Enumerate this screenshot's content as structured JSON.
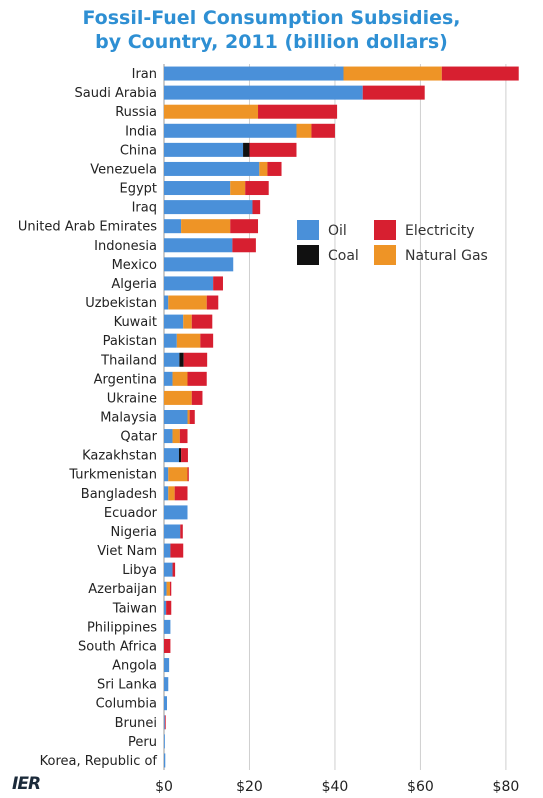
{
  "chart_data": {
    "type": "bar",
    "orientation": "horizontal",
    "stacked": true,
    "title_lines": [
      "Fossil-Fuel Consumption Subsidies,",
      "by Country, 2011 (billion dollars)"
    ],
    "xlim": [
      0,
      84
    ],
    "x_ticks": [
      0,
      20,
      40,
      60,
      80
    ],
    "x_tick_labels": [
      "$0",
      "$20",
      "$40",
      "$60",
      "$80"
    ],
    "grid": "vertical",
    "legend": "center-right",
    "categories": [
      "Iran",
      "Saudi Arabia",
      "Russia",
      "India",
      "China",
      "Venezuela",
      "Egypt",
      "Iraq",
      "United Arab Emirates",
      "Indonesia",
      "Mexico",
      "Algeria",
      "Uzbekistan",
      "Kuwait",
      "Pakistan",
      "Thailand",
      "Argentina",
      "Ukraine",
      "Malaysia",
      "Qatar",
      "Kazakhstan",
      "Turkmenistan",
      "Bangladesh",
      "Ecuador",
      "Nigeria",
      "Viet Nam",
      "Libya",
      "Azerbaijan",
      "Taiwan",
      "Philippines",
      "South Africa",
      "Angola",
      "Sri Lanka",
      "Columbia",
      "Brunei",
      "Peru",
      "Korea, Republic of"
    ],
    "series": [
      {
        "name": "Oil",
        "color": "#4A90D9",
        "values": [
          42.0,
          46.5,
          0,
          31.0,
          18.5,
          22.3,
          15.5,
          20.7,
          4.0,
          16.0,
          16.2,
          11.5,
          1.0,
          4.5,
          3.0,
          3.6,
          2.0,
          0,
          5.5,
          2.0,
          3.5,
          1.0,
          1.0,
          5.5,
          3.8,
          1.5,
          2.0,
          0.6,
          0.5,
          1.5,
          0,
          1.2,
          1.0,
          0.7,
          0.2,
          0.2,
          0.3
        ]
      },
      {
        "name": "Coal",
        "color": "#111111",
        "values": [
          0,
          0,
          0,
          0,
          1.5,
          0,
          0,
          0,
          0,
          0,
          0,
          0,
          0,
          0,
          0,
          1.0,
          0,
          0,
          0,
          0,
          0.5,
          0,
          0,
          0,
          0,
          0,
          0,
          0,
          0,
          0,
          0,
          0,
          0,
          0,
          0,
          0,
          0
        ]
      },
      {
        "name": "Natural Gas",
        "color": "#EE9426",
        "values": [
          23.0,
          0,
          22.0,
          3.5,
          0,
          1.9,
          3.5,
          0,
          11.5,
          0,
          0,
          0,
          9.0,
          2.0,
          5.5,
          0,
          3.5,
          6.5,
          0.5,
          1.7,
          0,
          4.5,
          1.5,
          0,
          0,
          0,
          0,
          0.8,
          0,
          0,
          0,
          0,
          0,
          0,
          0,
          0,
          0
        ]
      },
      {
        "name": "Electricity",
        "color": "#D71F30",
        "values": [
          18.0,
          14.5,
          18.5,
          5.5,
          11.0,
          3.3,
          5.5,
          1.8,
          6.5,
          5.5,
          0,
          2.3,
          2.7,
          4.8,
          3.0,
          5.5,
          4.5,
          2.5,
          1.2,
          1.8,
          1.6,
          0.3,
          3.0,
          0,
          0.6,
          3.0,
          0.6,
          0.3,
          1.2,
          0,
          1.5,
          0,
          0,
          0,
          0.2,
          0,
          0
        ]
      }
    ]
  },
  "logo": {
    "text": "IER"
  }
}
